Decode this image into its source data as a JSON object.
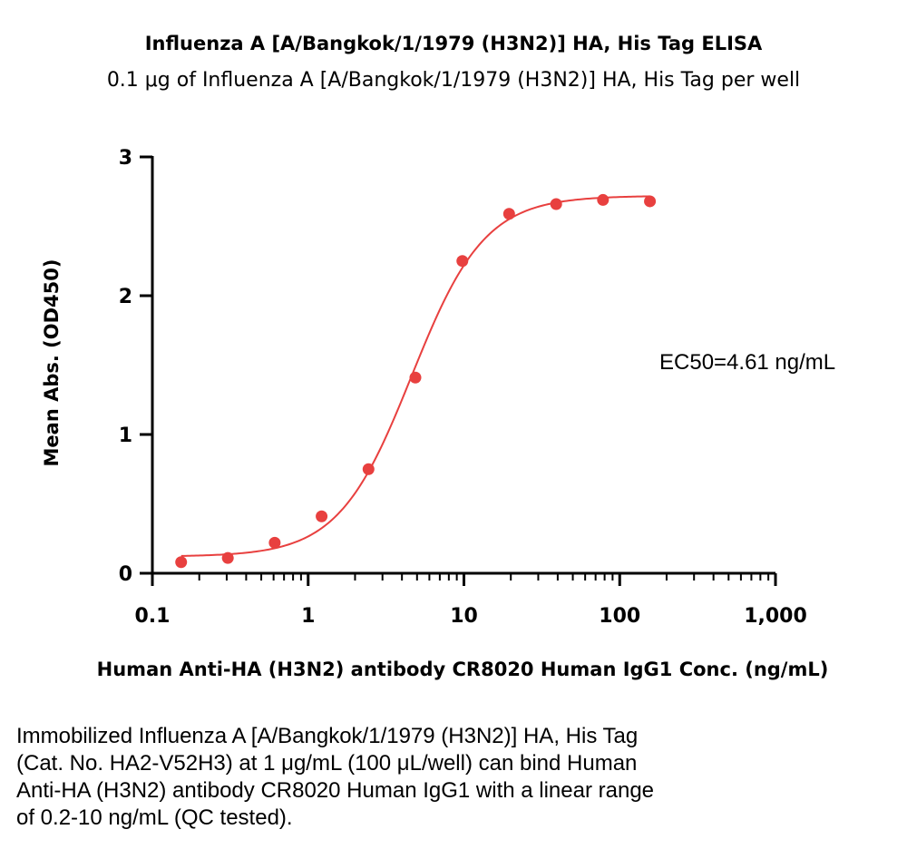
{
  "header": {
    "title": "Influenza A [A/Bangkok/1/1979 (H3N2)] HA, His Tag ELISA",
    "subtitle": "0.1 μg of Influenza A [A/Bangkok/1/1979 (H3N2)] HA, His Tag per well"
  },
  "chart_data": {
    "type": "scatter",
    "xlabel": "Human Anti-HA (H3N2) antibody CR8020 Human IgG1 Conc. (ng/mL)",
    "ylabel": "Mean Abs. (OD450)",
    "x_scale": "log",
    "xlim": [
      0.1,
      1000
    ],
    "ylim": [
      0,
      3
    ],
    "x_ticks": [
      0.1,
      1,
      10,
      100,
      1000
    ],
    "x_tick_labels": [
      "0.1",
      "1",
      "10",
      "100",
      "1,000"
    ],
    "y_ticks": [
      0,
      1,
      2,
      3
    ],
    "y_tick_labels": [
      "0",
      "1",
      "2",
      "3"
    ],
    "grid": false,
    "color": "#e8403f",
    "series": [
      {
        "x": [
          0.153,
          0.305,
          0.61,
          1.22,
          2.44,
          4.88,
          9.77,
          19.5,
          39.1,
          78.1,
          156.3
        ],
        "y": [
          0.08,
          0.11,
          0.22,
          0.41,
          0.75,
          1.41,
          2.25,
          2.59,
          2.66,
          2.69,
          2.68
        ]
      }
    ],
    "fit_curve": {
      "model": "four-parameter logistic",
      "bottom": 0.12,
      "top": 2.72,
      "ec50": 4.61,
      "hill": 1.85
    },
    "annotation": "EC50=4.61 ng/mL"
  },
  "caption_lines": [
    "Immobilized Influenza A [A/Bangkok/1/1979 (H3N2)] HA, His Tag",
    "(Cat. No. HA2-V52H3) at 1 μg/mL (100 μL/well) can bind Human",
    "Anti-HA (H3N2) antibody CR8020 Human IgG1 with a linear range",
    "of 0.2-10 ng/mL (QC tested)."
  ]
}
